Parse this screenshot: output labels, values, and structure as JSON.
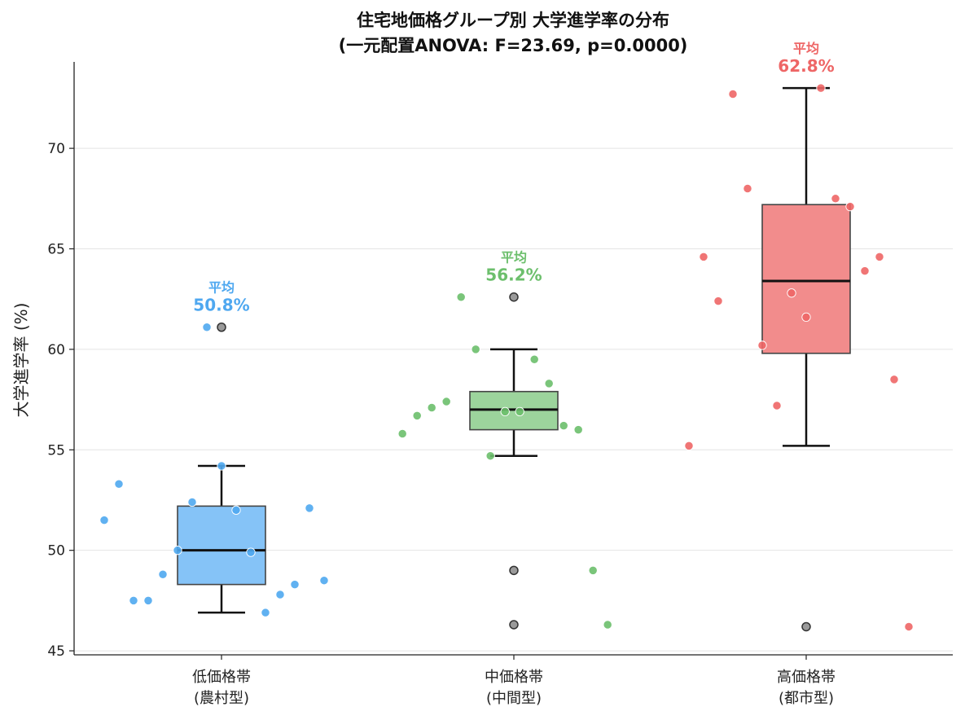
{
  "chart_data": {
    "type": "box",
    "title_lines": [
      "住宅地価格グループ別 大学進学率の分布",
      "(一元配置ANOVA: F=23.69, p=0.0000)"
    ],
    "ylabel": "大学進学率 (%)",
    "xlabel": "",
    "ylim": [
      44.8,
      74.3
    ],
    "yticks": [
      45,
      50,
      55,
      60,
      65,
      70
    ],
    "grid": "y",
    "mean_prefix": "平均",
    "groups": [
      {
        "label_lines": [
          "低価格帯",
          "(農村型)"
        ],
        "color": "#4FA8F0",
        "box_color": "#85C3F7",
        "mean_text": "50.8%",
        "whisker_low": 46.9,
        "q1": 48.3,
        "median": 50.0,
        "q3": 52.2,
        "whisker_high": 54.2,
        "outliers": [
          61.1
        ],
        "points": [
          {
            "dx": -0.4,
            "y": 51.5
          },
          {
            "dx": -0.35,
            "y": 53.3
          },
          {
            "dx": -0.3,
            "y": 47.5
          },
          {
            "dx": -0.25,
            "y": 47.5
          },
          {
            "dx": -0.2,
            "y": 48.8
          },
          {
            "dx": -0.15,
            "y": 50.0
          },
          {
            "dx": -0.1,
            "y": 52.4
          },
          {
            "dx": -0.05,
            "y": 61.1
          },
          {
            "dx": 0.0,
            "y": 54.2
          },
          {
            "dx": 0.05,
            "y": 52.0
          },
          {
            "dx": 0.1,
            "y": 49.9
          },
          {
            "dx": 0.15,
            "y": 46.9
          },
          {
            "dx": 0.2,
            "y": 47.8
          },
          {
            "dx": 0.25,
            "y": 48.3
          },
          {
            "dx": 0.3,
            "y": 52.1
          },
          {
            "dx": 0.35,
            "y": 48.5
          }
        ]
      },
      {
        "label_lines": [
          "中価格帯",
          "(中間型)"
        ],
        "color": "#6CBF6C",
        "box_color": "#9CD49C",
        "mean_text": "56.2%",
        "whisker_low": 54.7,
        "q1": 56.0,
        "median": 57.0,
        "q3": 57.9,
        "whisker_high": 60.0,
        "outliers": [
          62.6,
          49.0,
          46.3
        ],
        "points": [
          {
            "dx": -0.38,
            "y": 55.8
          },
          {
            "dx": -0.33,
            "y": 56.7
          },
          {
            "dx": -0.28,
            "y": 57.1
          },
          {
            "dx": -0.23,
            "y": 57.4
          },
          {
            "dx": -0.18,
            "y": 62.6
          },
          {
            "dx": -0.13,
            "y": 60.0
          },
          {
            "dx": -0.08,
            "y": 54.7
          },
          {
            "dx": -0.03,
            "y": 56.9
          },
          {
            "dx": 0.02,
            "y": 56.9
          },
          {
            "dx": 0.07,
            "y": 59.5
          },
          {
            "dx": 0.12,
            "y": 58.3
          },
          {
            "dx": 0.17,
            "y": 56.2
          },
          {
            "dx": 0.22,
            "y": 56.0
          },
          {
            "dx": 0.27,
            "y": 49.0
          },
          {
            "dx": 0.32,
            "y": 46.3
          }
        ]
      },
      {
        "label_lines": [
          "高価格帯",
          "(都市型)"
        ],
        "color": "#EE6666",
        "box_color": "#F28C8C",
        "mean_text": "62.8%",
        "whisker_low": 55.2,
        "q1": 59.8,
        "median": 63.4,
        "q3": 67.2,
        "whisker_high": 73.0,
        "outliers": [
          46.2
        ],
        "points": [
          {
            "dx": -0.4,
            "y": 55.2
          },
          {
            "dx": -0.35,
            "y": 64.6
          },
          {
            "dx": -0.3,
            "y": 62.4
          },
          {
            "dx": -0.25,
            "y": 72.7
          },
          {
            "dx": -0.2,
            "y": 68.0
          },
          {
            "dx": -0.15,
            "y": 60.2
          },
          {
            "dx": -0.1,
            "y": 57.2
          },
          {
            "dx": -0.05,
            "y": 62.8
          },
          {
            "dx": 0.0,
            "y": 61.6
          },
          {
            "dx": 0.05,
            "y": 73.0
          },
          {
            "dx": 0.1,
            "y": 67.5
          },
          {
            "dx": 0.15,
            "y": 67.1
          },
          {
            "dx": 0.2,
            "y": 63.9
          },
          {
            "dx": 0.25,
            "y": 64.6
          },
          {
            "dx": 0.3,
            "y": 58.5
          },
          {
            "dx": 0.35,
            "y": 46.2
          }
        ]
      }
    ]
  }
}
